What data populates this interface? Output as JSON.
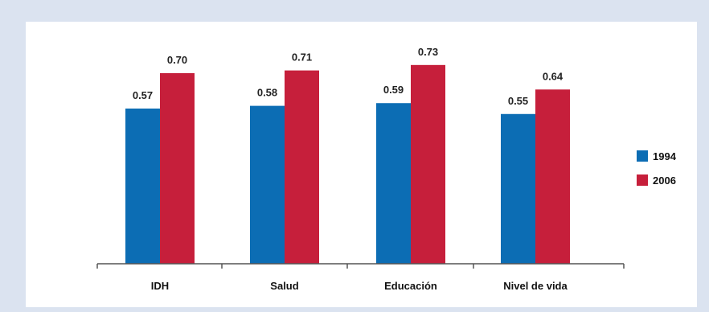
{
  "chart_data": {
    "type": "bar",
    "categories": [
      "IDH",
      "Salud",
      "Educación",
      "Nivel de vida"
    ],
    "series": [
      {
        "name": "1994",
        "values": [
          0.57,
          0.58,
          0.59,
          0.55
        ],
        "labels": [
          "0.57",
          "0.58",
          "0.59",
          "0.55"
        ],
        "color": "#0c6db4"
      },
      {
        "name": "2006",
        "values": [
          0.7,
          0.71,
          0.73,
          0.64
        ],
        "labels": [
          "0.70",
          "0.71",
          "0.73",
          "0.64"
        ],
        "color": "#c61f3b"
      }
    ],
    "ylim": [
      0,
      0.9
    ],
    "grid": false,
    "legend_position": "right",
    "axis_color": "#555555"
  }
}
